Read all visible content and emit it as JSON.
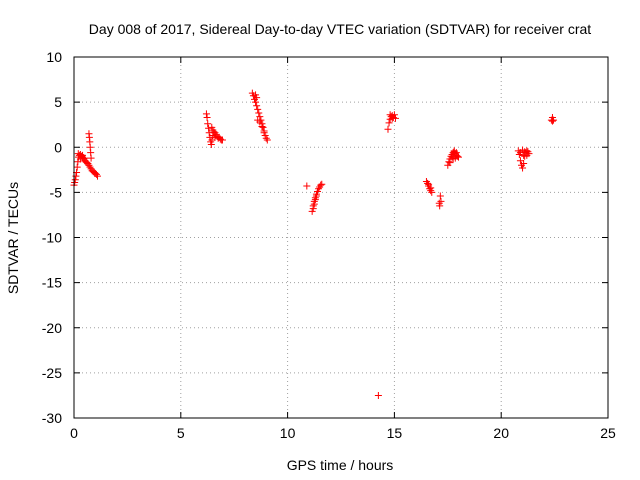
{
  "chart_data": {
    "type": "scatter",
    "title": "Day 008 of 2017, Sidereal Day-to-day VTEC variation (SDTVAR) for receiver crat",
    "xlabel": "GPS time / hours",
    "ylabel": "SDTVAR / TECUs",
    "xlim": [
      0,
      25
    ],
    "ylim": [
      -30,
      10
    ],
    "xticks": [
      0,
      5,
      10,
      15,
      20,
      25
    ],
    "yticks": [
      10,
      5,
      0,
      -5,
      -10,
      -15,
      -20,
      -25,
      -30
    ],
    "grid": true,
    "marker": "+",
    "color": "#ff0000",
    "series": [
      {
        "name": "SDTVAR",
        "points": [
          [
            0.0,
            -4.2
          ],
          [
            0.03,
            -3.9
          ],
          [
            0.06,
            -3.6
          ],
          [
            0.09,
            -3.2
          ],
          [
            0.12,
            -2.8
          ],
          [
            0.15,
            -2.2
          ],
          [
            0.18,
            -1.6
          ],
          [
            0.21,
            -1.1
          ],
          [
            0.25,
            -0.9
          ],
          [
            0.3,
            -0.8
          ],
          [
            0.35,
            -1.0
          ],
          [
            0.4,
            -1.1
          ],
          [
            0.45,
            -1.3
          ],
          [
            0.5,
            -1.5
          ],
          [
            0.55,
            -1.6
          ],
          [
            0.6,
            -1.7
          ],
          [
            0.65,
            -1.8
          ],
          [
            0.7,
            -2.0
          ],
          [
            0.75,
            -2.2
          ],
          [
            0.8,
            -2.4
          ],
          [
            0.85,
            -2.6
          ],
          [
            0.9,
            -2.7
          ],
          [
            0.95,
            -2.8
          ],
          [
            1.0,
            -2.9
          ],
          [
            1.05,
            -3.0
          ],
          [
            1.1,
            -3.2
          ],
          [
            0.7,
            1.5
          ],
          [
            0.72,
            1.1
          ],
          [
            0.74,
            0.6
          ],
          [
            0.76,
            0.0
          ],
          [
            0.78,
            -0.6
          ],
          [
            0.8,
            -1.2
          ],
          [
            0.2,
            -0.7
          ],
          [
            0.3,
            -1.3
          ],
          [
            0.4,
            -0.9
          ],
          [
            0.5,
            -1.2
          ],
          [
            6.2,
            3.7
          ],
          [
            6.23,
            3.3
          ],
          [
            6.26,
            2.6
          ],
          [
            6.3,
            2.1
          ],
          [
            6.33,
            1.6
          ],
          [
            6.36,
            1.1
          ],
          [
            6.4,
            0.6
          ],
          [
            6.43,
            0.3
          ],
          [
            6.46,
            0.8
          ],
          [
            6.5,
            1.3
          ],
          [
            6.55,
            1.7
          ],
          [
            6.6,
            1.6
          ],
          [
            6.65,
            1.4
          ],
          [
            6.7,
            1.2
          ],
          [
            6.75,
            1.0
          ],
          [
            6.8,
            1.1
          ],
          [
            6.85,
            0.9
          ],
          [
            6.9,
            0.8
          ],
          [
            6.95,
            0.8
          ],
          [
            6.45,
            2.2
          ],
          [
            6.5,
            1.9
          ],
          [
            6.6,
            1.1
          ],
          [
            8.35,
            6.0
          ],
          [
            8.4,
            5.7
          ],
          [
            8.45,
            5.3
          ],
          [
            8.5,
            5.0
          ],
          [
            8.55,
            4.6
          ],
          [
            8.6,
            4.2
          ],
          [
            8.65,
            3.8
          ],
          [
            8.7,
            3.4
          ],
          [
            8.75,
            3.0
          ],
          [
            8.8,
            2.6
          ],
          [
            8.85,
            2.2
          ],
          [
            8.9,
            1.8
          ],
          [
            8.95,
            1.3
          ],
          [
            9.0,
            1.0
          ],
          [
            9.05,
            0.8
          ],
          [
            8.5,
            5.8
          ],
          [
            8.55,
            5.5
          ],
          [
            8.6,
            3.0
          ],
          [
            8.7,
            2.8
          ],
          [
            8.8,
            2.3
          ],
          [
            8.9,
            1.6
          ],
          [
            10.9,
            -4.3
          ],
          [
            11.15,
            -7.1
          ],
          [
            11.2,
            -6.5
          ],
          [
            11.25,
            -6.0
          ],
          [
            11.3,
            -5.6
          ],
          [
            11.35,
            -5.2
          ],
          [
            11.4,
            -4.9
          ],
          [
            11.45,
            -4.6
          ],
          [
            11.5,
            -4.4
          ],
          [
            11.55,
            -4.2
          ],
          [
            11.6,
            -4.1
          ],
          [
            11.2,
            -6.8
          ],
          [
            11.25,
            -6.3
          ],
          [
            11.3,
            -5.8
          ],
          [
            11.35,
            -5.4
          ],
          [
            14.25,
            -27.5
          ],
          [
            14.7,
            2.0
          ],
          [
            14.75,
            2.7
          ],
          [
            14.8,
            3.1
          ],
          [
            14.85,
            3.4
          ],
          [
            14.9,
            3.5
          ],
          [
            14.95,
            3.3
          ],
          [
            15.0,
            3.6
          ],
          [
            15.05,
            3.2
          ],
          [
            14.8,
            3.6
          ],
          [
            14.9,
            3.2
          ],
          [
            16.5,
            -3.8
          ],
          [
            16.55,
            -4.0
          ],
          [
            16.6,
            -4.3
          ],
          [
            16.65,
            -4.6
          ],
          [
            16.7,
            -4.8
          ],
          [
            16.75,
            -5.0
          ],
          [
            16.6,
            -4.1
          ],
          [
            16.7,
            -4.5
          ],
          [
            17.1,
            -6.2
          ],
          [
            17.12,
            -6.5
          ],
          [
            17.15,
            -5.4
          ],
          [
            17.18,
            -6.0
          ],
          [
            17.5,
            -2.0
          ],
          [
            17.55,
            -1.6
          ],
          [
            17.6,
            -1.3
          ],
          [
            17.65,
            -1.0
          ],
          [
            17.7,
            -0.8
          ],
          [
            17.75,
            -0.6
          ],
          [
            17.8,
            -0.5
          ],
          [
            17.85,
            -0.7
          ],
          [
            17.9,
            -0.9
          ],
          [
            17.95,
            -1.0
          ],
          [
            18.0,
            -1.1
          ],
          [
            17.6,
            -1.7
          ],
          [
            17.7,
            -1.1
          ],
          [
            17.8,
            -0.4
          ],
          [
            17.9,
            -0.6
          ],
          [
            17.75,
            -1.3
          ],
          [
            17.85,
            -1.2
          ],
          [
            20.8,
            -0.4
          ],
          [
            20.85,
            -0.8
          ],
          [
            20.9,
            -1.5
          ],
          [
            20.95,
            -2.0
          ],
          [
            21.0,
            -2.3
          ],
          [
            21.05,
            -1.8
          ],
          [
            21.1,
            -1.0
          ],
          [
            21.15,
            -0.6
          ],
          [
            21.2,
            -0.4
          ],
          [
            21.25,
            -0.5
          ],
          [
            21.3,
            -0.7
          ],
          [
            21.0,
            -0.3
          ],
          [
            21.1,
            -0.5
          ],
          [
            21.2,
            -0.9
          ],
          [
            20.9,
            -0.6
          ],
          [
            21.05,
            -0.9
          ],
          [
            22.35,
            3.0
          ],
          [
            22.4,
            3.3
          ],
          [
            22.45,
            3.0
          ],
          [
            22.4,
            2.9
          ]
        ]
      }
    ]
  }
}
